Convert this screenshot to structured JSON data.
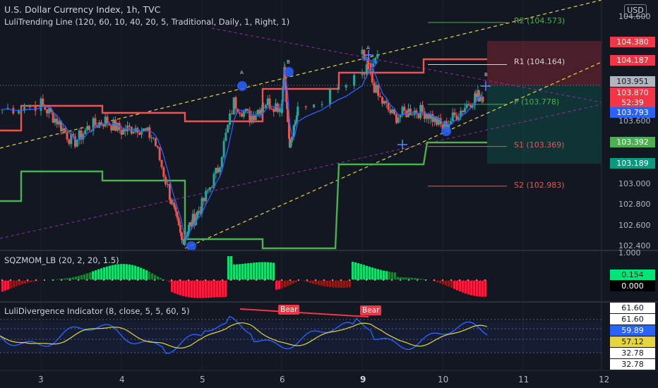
{
  "title": "U.S. Dollar Currency Index, 1h, TVC",
  "indicator_trend": "LuliTrending Line (120, 60, 10, 40, 20, 5, Traditional, Daily, 1, Right, 1)",
  "indicator_sqz": "SQZMOM_LB (20, 2, 20, 1.5)",
  "indicator_div": "LuliDivergence Indicator (8, close, 5, 5, 60, 5)",
  "currency": "USD",
  "pivots": {
    "r2": "R2 (104.573)",
    "r1": "R1 (104.164)",
    "p": "P (103.778)",
    "s1": "S1 (103.369)",
    "s2": "S2 (102.983)"
  },
  "markers": {
    "bear1": "Bear",
    "bear2": "Bear",
    "a1": "A",
    "b1": "B",
    "a2": "A",
    "b2": "B"
  },
  "price_badges": {
    "b104380": "104.380",
    "b104187": "104.187",
    "b103951": "103.951",
    "b103870": "103.870",
    "b_countdown": "52:39",
    "b103793": "103.793",
    "b103392": "103.392",
    "b103189": "103.189"
  },
  "price_ticks": [
    "104.600",
    "103.600",
    "103.000",
    "102.800",
    "102.600",
    "102.400"
  ],
  "sqz_ticks": [
    "1.000"
  ],
  "sqz_badges": {
    "v1": "0.154",
    "v2": "0.000"
  },
  "div_badges": [
    "61.60",
    "61.60",
    "59.89",
    "57.12",
    "32.78",
    "32.78"
  ],
  "x_ticks": [
    "3",
    "4",
    "5",
    "6",
    "9",
    "10",
    "11",
    "12"
  ],
  "colors": {
    "background": "#131722",
    "bull": "#26a69a",
    "bear": "#ef5350",
    "trend_red": "#f0534f",
    "trend_green": "#4caf50",
    "ma_blue": "#2962ff",
    "yellow_dash": "#e6d53a",
    "purple_dash": "#9c27b0",
    "osc_blue": "#2962ff",
    "osc_yellow": "#e6d53a"
  },
  "chart_data": {
    "type": "line",
    "timeframe": "1h",
    "x_ticks": [
      "3",
      "4",
      "5",
      "6",
      "9",
      "10",
      "11",
      "12"
    ],
    "price_range": [
      102.33,
      104.7
    ],
    "pivot_levels": {
      "R2": 104.573,
      "R1": 104.164,
      "P": 103.778,
      "S1": 103.369,
      "S2": 102.983
    },
    "close_path": [
      {
        "x": "3.0",
        "y": 103.78
      },
      {
        "x": "3.2",
        "y": 103.62
      },
      {
        "x": "3.4",
        "y": 103.4
      },
      {
        "x": "3.6",
        "y": 103.56
      },
      {
        "x": "3.8",
        "y": 103.62
      },
      {
        "x": "4.0",
        "y": 103.52
      },
      {
        "x": "4.2",
        "y": 103.56
      },
      {
        "x": "4.4",
        "y": 103.45
      },
      {
        "x": "4.6",
        "y": 102.9
      },
      {
        "x": "4.75",
        "y": 102.44
      },
      {
        "x": "4.85",
        "y": 102.6
      },
      {
        "x": "5.0",
        "y": 102.8
      },
      {
        "x": "5.2",
        "y": 103.15
      },
      {
        "x": "5.4",
        "y": 103.8
      },
      {
        "x": "5.6",
        "y": 103.65
      },
      {
        "x": "5.8",
        "y": 103.8
      },
      {
        "x": "6.0",
        "y": 103.75
      },
      {
        "x": "6.1",
        "y": 104.08
      },
      {
        "x": "6.3",
        "y": 103.42
      },
      {
        "x": "6.6",
        "y": 103.7
      },
      {
        "x": "8.8",
        "y": 104.05
      },
      {
        "x": "9.0",
        "y": 104.25
      },
      {
        "x": "9.2",
        "y": 103.85
      },
      {
        "x": "9.4",
        "y": 103.65
      },
      {
        "x": "9.6",
        "y": 103.72
      },
      {
        "x": "9.8",
        "y": 103.7
      },
      {
        "x": "10.0",
        "y": 103.55
      },
      {
        "x": "10.2",
        "y": 103.7
      },
      {
        "x": "10.4",
        "y": 103.85
      },
      {
        "x": "10.5",
        "y": 103.87
      }
    ],
    "sqz_range": [
      -0.8,
      1.0
    ],
    "sqz_values": [
      0.154,
      0.0
    ],
    "divergence_range": [
      20,
      80
    ],
    "divergence_levels": [
      61.6,
      61.6,
      59.89,
      57.12,
      32.78,
      32.78
    ]
  }
}
